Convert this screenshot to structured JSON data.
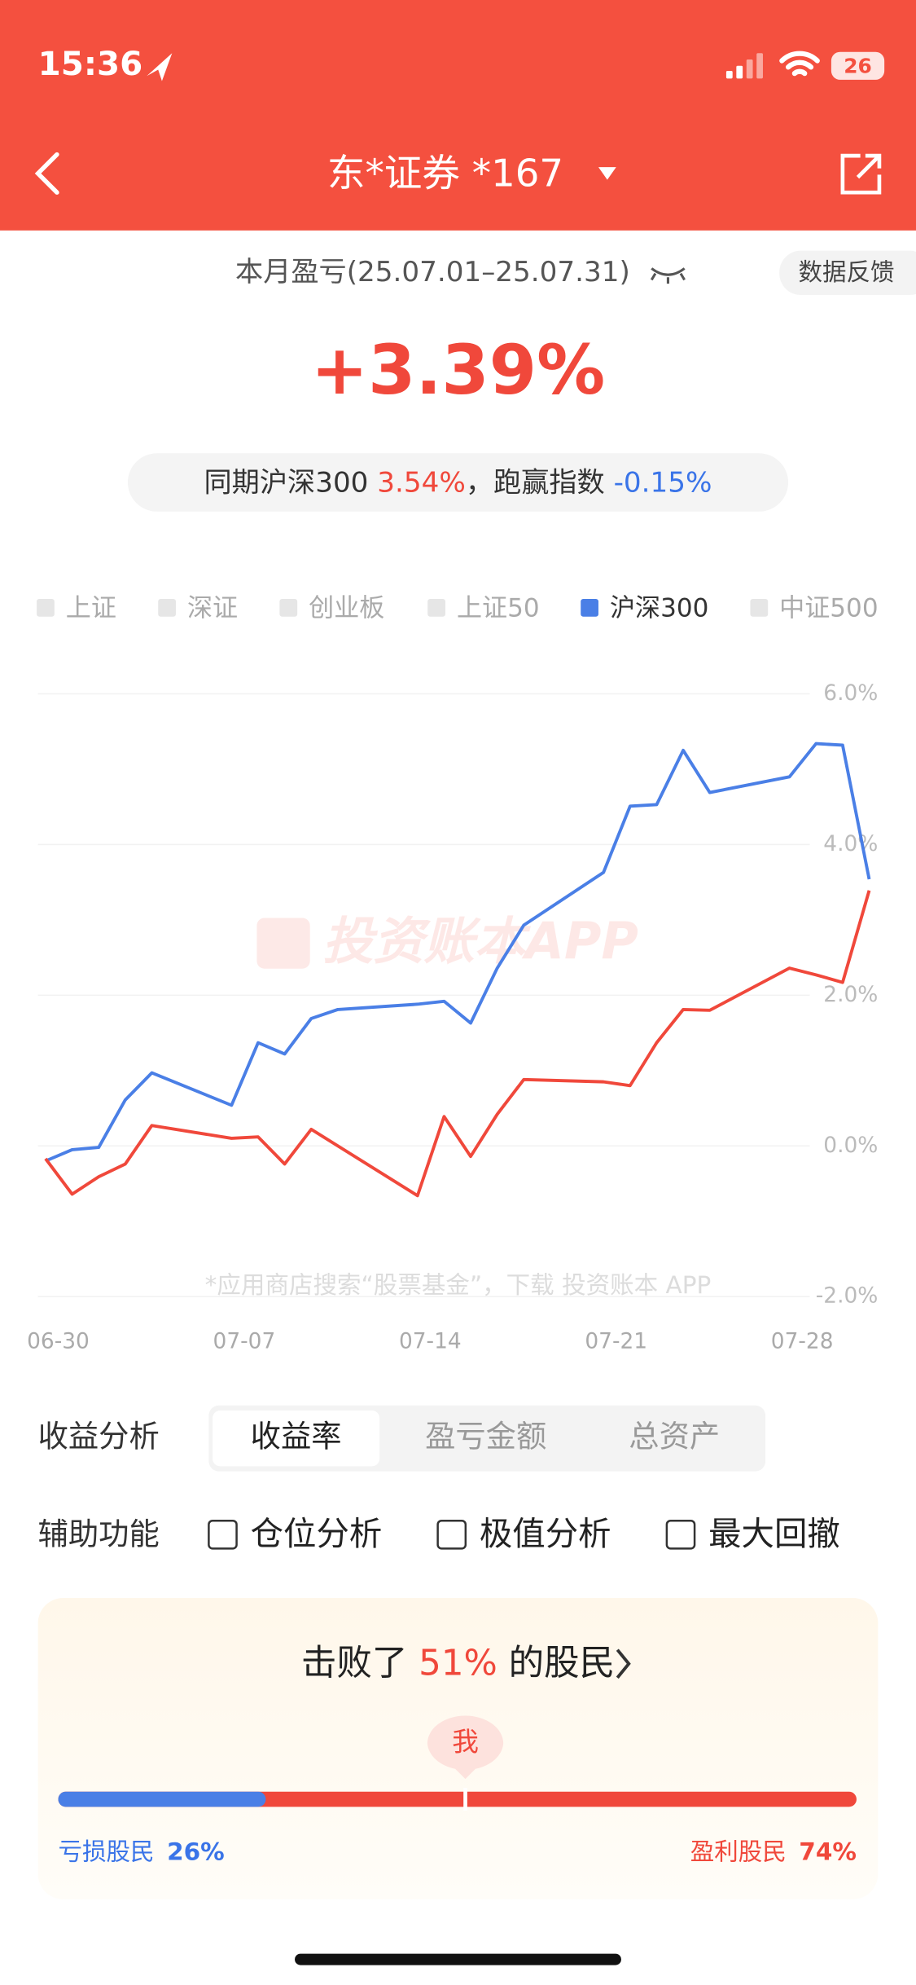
{
  "status_bar": {
    "time": "15:36",
    "battery": "26"
  },
  "nav": {
    "title": "东*证券 *167"
  },
  "summary": {
    "period": "本月盈亏(25.07.01–25.07.31)",
    "feedback": "数据反馈",
    "return": "+3.39%",
    "compare_prefix": "同期沪深300 ",
    "compare_value": "3.54%",
    "compare_middle": "，跑赢指数 ",
    "compare_excess": "-0.15%"
  },
  "chart_data": {
    "type": "line",
    "legend_items": [
      {
        "name": "上证",
        "color": "#e6e6e6"
      },
      {
        "name": "深证",
        "color": "#e6e6e6"
      },
      {
        "name": "创业板",
        "color": "#e6e6e6"
      },
      {
        "name": "上证50",
        "color": "#e6e6e6"
      },
      {
        "name": "沪深300",
        "color": "#4a7fe6"
      },
      {
        "name": "中证500",
        "color": "#e6e6e6"
      }
    ],
    "x": [
      "06-30",
      "07-01",
      "07-02",
      "07-03",
      "07-04",
      "07-07",
      "07-08",
      "07-09",
      "07-10",
      "07-11",
      "07-14",
      "07-15",
      "07-16",
      "07-17",
      "07-18",
      "07-21",
      "07-22",
      "07-23",
      "07-24",
      "07-25",
      "07-28",
      "07-29",
      "07-30",
      "07-31"
    ],
    "series": [
      {
        "color": "#4a7fe6",
        "values": [
          -0.2,
          -0.05,
          -0.02,
          0.61,
          0.97,
          0.54,
          1.37,
          1.22,
          1.69,
          1.81,
          1.88,
          1.92,
          1.63,
          2.36,
          2.93,
          3.63,
          4.51,
          4.53,
          5.25,
          4.69,
          4.9,
          5.34,
          5.32,
          3.54
        ]
      },
      {
        "color": "#f0483b",
        "values": [
          -0.17,
          -0.64,
          -0.41,
          -0.24,
          0.27,
          0.1,
          0.12,
          -0.24,
          0.22,
          0.0,
          -0.66,
          0.39,
          -0.14,
          0.42,
          0.88,
          0.85,
          0.8,
          1.37,
          1.81,
          1.8,
          2.36,
          2.27,
          2.17,
          3.39
        ]
      }
    ],
    "xlim": [
      "06-30",
      "07-31"
    ],
    "xticks": [
      "06-30",
      "07-07",
      "07-14",
      "07-21",
      "07-28"
    ],
    "ylim": [
      -2,
      6
    ],
    "yticks": [
      {
        "value": -2,
        "label": "-2.0%"
      },
      {
        "value": 0,
        "label": "0.0%"
      },
      {
        "value": 2,
        "label": "2.0%"
      },
      {
        "value": 4,
        "label": "4.0%"
      },
      {
        "value": 6,
        "label": "6.0%"
      }
    ],
    "grid": true,
    "watermark": "投资账本APP",
    "footnote": "*应用商店搜索“股票基金”，下载 投资账本 APP"
  },
  "analysis": {
    "label": "收益分析",
    "tabs": [
      "收益率",
      "盈亏金额",
      "总资产"
    ],
    "selected": 0
  },
  "tools": {
    "label": "辅助功能",
    "options": [
      "仓位分析",
      "极值分析",
      "最大回撤"
    ]
  },
  "rank": {
    "prefix": "击败了 ",
    "beat": {
      "value": 51,
      "value_label": "51%"
    },
    "suffix": " 的股民",
    "me": "我",
    "loss": {
      "label": "亏损股民",
      "value": 26,
      "value_label": "26%"
    },
    "profit": {
      "label": "盈利股民",
      "value": 74,
      "value_label": "74%"
    }
  }
}
